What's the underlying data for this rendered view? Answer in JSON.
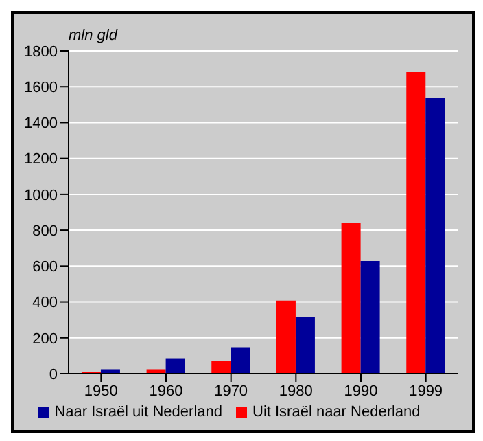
{
  "chart_data": {
    "type": "bar",
    "ylabel": "mln gld",
    "categories": [
      "1950",
      "1960",
      "1970",
      "1980",
      "1990",
      "1999"
    ],
    "series": [
      {
        "name": "Uit Israël naar Nederland",
        "color": "#ff0000",
        "values": [
          10,
          25,
          71,
          407,
          842,
          1681
        ]
      },
      {
        "name": "Naar Israël uit Nederland",
        "color": "#000099",
        "values": [
          25,
          86,
          147,
          315,
          628,
          1536
        ]
      }
    ],
    "ylim": [
      0,
      1800
    ],
    "yticks": [
      0,
      200,
      400,
      600,
      800,
      1000,
      1200,
      1400,
      1600,
      1800
    ],
    "grid": "y",
    "legend": "bottom"
  }
}
